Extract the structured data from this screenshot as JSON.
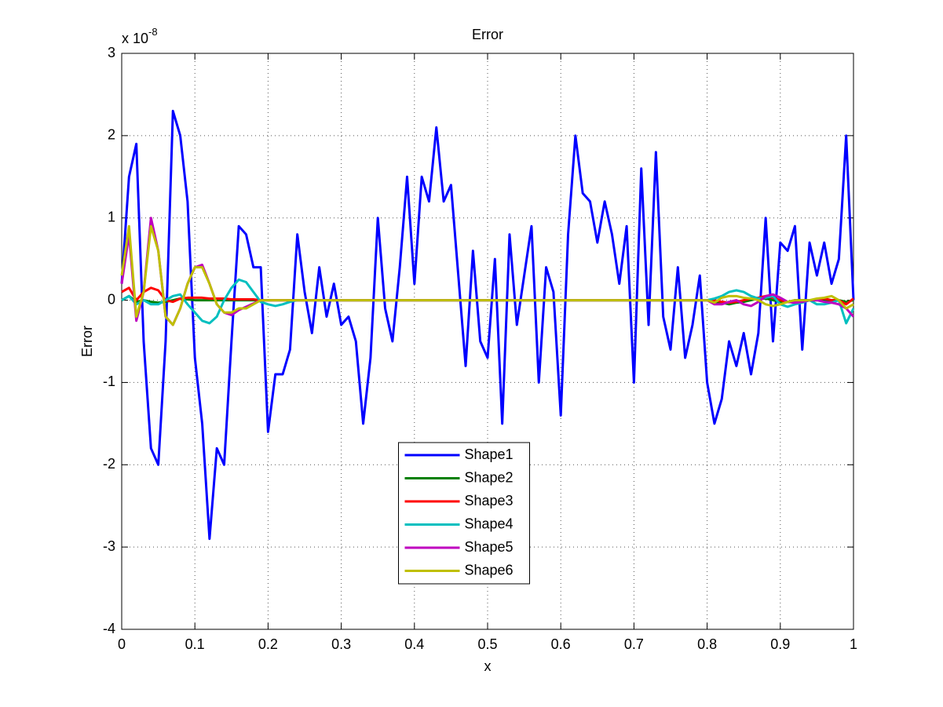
{
  "chart_data": {
    "type": "line",
    "title": "Error",
    "xlabel": "x",
    "ylabel": "Error",
    "y_multiplier": {
      "base": "x 10",
      "exponent": "-8"
    },
    "xlim": [
      0,
      1
    ],
    "ylim": [
      -4,
      3
    ],
    "xticks": [
      0,
      0.1,
      0.2,
      0.3,
      0.4,
      0.5,
      0.6,
      0.7,
      0.8,
      0.9,
      1
    ],
    "yticks": [
      -4,
      -3,
      -2,
      -1,
      0,
      1,
      2,
      3
    ],
    "grid": true,
    "legend": "south",
    "x": [
      0,
      0.01,
      0.02,
      0.03,
      0.04,
      0.05,
      0.06,
      0.07,
      0.08,
      0.09,
      0.1,
      0.11,
      0.12,
      0.13,
      0.14,
      0.15,
      0.16,
      0.17,
      0.18,
      0.19,
      0.2,
      0.21,
      0.22,
      0.23,
      0.24,
      0.25,
      0.26,
      0.27,
      0.28,
      0.29,
      0.3,
      0.31,
      0.32,
      0.33,
      0.34,
      0.35,
      0.36,
      0.37,
      0.38,
      0.39,
      0.4,
      0.41,
      0.42,
      0.43,
      0.44,
      0.45,
      0.46,
      0.47,
      0.48,
      0.49,
      0.5,
      0.51,
      0.52,
      0.53,
      0.54,
      0.55,
      0.56,
      0.57,
      0.58,
      0.59,
      0.6,
      0.61,
      0.62,
      0.63,
      0.64,
      0.65,
      0.66,
      0.67,
      0.68,
      0.69,
      0.7,
      0.71,
      0.72,
      0.73,
      0.74,
      0.75,
      0.76,
      0.77,
      0.78,
      0.79,
      0.8,
      0.81,
      0.82,
      0.83,
      0.84,
      0.85,
      0.86,
      0.87,
      0.88,
      0.89,
      0.9,
      0.91,
      0.92,
      0.93,
      0.94,
      0.95,
      0.96,
      0.97,
      0.98,
      0.99,
      1
    ],
    "series": [
      {
        "name": "Shape1",
        "color": "#0000ff",
        "values": [
          0.2,
          1.5,
          1.9,
          -0.5,
          -1.8,
          -2.0,
          -0.5,
          2.3,
          2.0,
          1.2,
          -0.7,
          -1.5,
          -2.9,
          -1.8,
          -2.0,
          -0.5,
          0.9,
          0.8,
          0.4,
          0.4,
          -1.6,
          -0.9,
          -0.9,
          -0.6,
          0.8,
          0.1,
          -0.4,
          0.4,
          -0.2,
          0.2,
          -0.3,
          -0.2,
          -0.5,
          -1.5,
          -0.7,
          1.0,
          -0.1,
          -0.5,
          0.4,
          1.5,
          0.2,
          1.5,
          1.2,
          2.1,
          1.2,
          1.4,
          0.3,
          -0.8,
          0.6,
          -0.5,
          -0.7,
          0.5,
          -1.5,
          0.8,
          -0.3,
          0.3,
          0.9,
          -1.0,
          0.4,
          0.1,
          -1.4,
          0.8,
          2.0,
          1.3,
          1.2,
          0.7,
          1.2,
          0.8,
          0.2,
          0.9,
          -1.0,
          1.6,
          -0.3,
          1.8,
          -0.2,
          -0.6,
          0.4,
          -0.7,
          -0.3,
          0.3,
          -1.0,
          -1.5,
          -1.2,
          -0.5,
          -0.8,
          -0.4,
          -0.9,
          -0.4,
          1.0,
          -0.5,
          0.7,
          0.6,
          0.9,
          -0.6,
          0.7,
          0.3,
          0.7,
          0.2,
          0.5,
          2.0,
          0.0
        ]
      },
      {
        "name": "Shape2",
        "color": "#008000",
        "values": [
          0,
          0.05,
          -0.02,
          0,
          -0.02,
          -0.03,
          -0.02,
          0,
          0.02,
          0.01,
          0,
          0,
          0,
          0,
          0,
          0,
          0,
          0,
          0,
          0,
          0,
          0,
          0,
          0,
          0,
          0,
          0,
          0,
          0,
          0,
          0,
          0,
          0,
          0,
          0,
          0,
          0,
          0,
          0,
          0,
          0,
          0,
          0,
          0,
          0,
          0,
          0,
          0,
          0,
          0,
          0,
          0,
          0,
          0,
          0,
          0,
          0,
          0,
          0,
          0,
          0,
          0,
          0,
          0,
          0,
          0,
          0,
          0,
          0,
          0,
          0,
          0,
          0,
          0,
          0,
          0,
          0,
          0,
          0,
          0,
          0,
          -0.02,
          -0.03,
          -0.05,
          -0.03,
          -0.02,
          0,
          0.02,
          0.02,
          0,
          -0.02,
          -0.02,
          0,
          0,
          0,
          0,
          0,
          0,
          0,
          -0.02,
          0
        ]
      },
      {
        "name": "Shape3",
        "color": "#ff0000",
        "values": [
          0.1,
          0.15,
          0,
          0.1,
          0.15,
          0.12,
          0,
          -0.02,
          0.02,
          0.03,
          0.03,
          0.03,
          0.02,
          0.02,
          0.02,
          0.01,
          0.01,
          0.01,
          0.01,
          0,
          0,
          0,
          0,
          0,
          0,
          0,
          0,
          0,
          0,
          0,
          0,
          0,
          0,
          0,
          0,
          0,
          0,
          0,
          0,
          0,
          0,
          0,
          0,
          0,
          0,
          0,
          0,
          0,
          0,
          0,
          0,
          0,
          0,
          0,
          0,
          0,
          0,
          0,
          0,
          0,
          0,
          0,
          0,
          0,
          0,
          0,
          0,
          0,
          0,
          0,
          0,
          0,
          0,
          0,
          0,
          0,
          0,
          0,
          0,
          0,
          0,
          0,
          -0.02,
          -0.03,
          -0.02,
          0,
          0.02,
          0.03,
          0.05,
          0.03,
          0,
          -0.02,
          -0.03,
          -0.02,
          0,
          0,
          0.02,
          0,
          0,
          -0.05,
          0.02
        ]
      },
      {
        "name": "Shape4",
        "color": "#00bfbf",
        "values": [
          0,
          0.05,
          -0.05,
          0,
          -0.05,
          -0.05,
          0,
          0.05,
          0.07,
          -0.05,
          -0.15,
          -0.25,
          -0.28,
          -0.2,
          0,
          0.15,
          0.25,
          0.22,
          0.1,
          -0.02,
          -0.05,
          -0.07,
          -0.05,
          -0.02,
          0,
          0,
          0,
          0,
          0,
          0,
          0,
          0,
          0,
          0,
          0,
          0,
          0,
          0,
          0,
          0,
          0,
          0,
          0,
          0,
          0,
          0,
          0,
          0,
          0,
          0,
          0,
          0,
          0,
          0,
          0,
          0,
          0,
          0,
          0,
          0,
          0,
          0,
          0,
          0,
          0,
          0,
          0,
          0,
          0,
          0,
          0,
          0,
          0,
          0,
          0,
          0,
          0,
          0,
          0,
          0,
          0,
          0.02,
          0.05,
          0.1,
          0.12,
          0.1,
          0.05,
          0.02,
          0.03,
          0.05,
          -0.05,
          -0.08,
          -0.05,
          -0.03,
          0,
          -0.05,
          -0.05,
          -0.03,
          0,
          -0.28,
          -0.1
        ]
      },
      {
        "name": "Shape5",
        "color": "#bf00bf",
        "values": [
          0.2,
          0.8,
          -0.25,
          0.1,
          1.0,
          0.6,
          -0.2,
          -0.3,
          -0.1,
          0.2,
          0.4,
          0.43,
          0.2,
          -0.05,
          -0.15,
          -0.18,
          -0.12,
          -0.08,
          -0.04,
          0,
          0,
          0,
          0,
          0,
          0,
          0,
          0,
          0,
          0,
          0,
          0,
          0,
          0,
          0,
          0,
          0,
          0,
          0,
          0,
          0,
          0,
          0,
          0,
          0,
          0,
          0,
          0,
          0,
          0,
          0,
          0,
          0,
          0,
          0,
          0,
          0,
          0,
          0,
          0,
          0,
          0,
          0,
          0,
          0,
          0,
          0,
          0,
          0,
          0,
          0,
          0,
          0,
          0,
          0,
          0,
          0,
          0,
          0,
          0,
          0,
          0,
          -0.05,
          -0.05,
          -0.02,
          0,
          -0.05,
          -0.07,
          -0.02,
          0.05,
          0.07,
          0.03,
          -0.02,
          -0.03,
          -0.02,
          0,
          0,
          -0.02,
          -0.03,
          -0.05,
          -0.1,
          -0.2
        ]
      },
      {
        "name": "Shape6",
        "color": "#bfbf00",
        "values": [
          0.3,
          0.9,
          -0.2,
          0.1,
          0.9,
          0.6,
          -0.2,
          -0.3,
          -0.1,
          0.2,
          0.4,
          0.4,
          0.2,
          -0.05,
          -0.15,
          -0.15,
          -0.1,
          -0.1,
          -0.05,
          0,
          0,
          0,
          0,
          0,
          0,
          0,
          0,
          0,
          0,
          0,
          0,
          0,
          0,
          0,
          0,
          0,
          0,
          0,
          0,
          0,
          0,
          0,
          0,
          0,
          0,
          0,
          0,
          0,
          0,
          0,
          0,
          0,
          0,
          0,
          0,
          0,
          0,
          0,
          0,
          0,
          0,
          0,
          0,
          0,
          0,
          0,
          0,
          0,
          0,
          0,
          0,
          0,
          0,
          0,
          0,
          0,
          0,
          0,
          0,
          0,
          0,
          -0.03,
          0.03,
          0.05,
          0.05,
          0.03,
          0.02,
          0,
          -0.05,
          -0.07,
          -0.05,
          -0.02,
          0,
          0,
          0,
          0.02,
          0.03,
          0.05,
          0,
          -0.1,
          -0.05
        ]
      }
    ]
  }
}
